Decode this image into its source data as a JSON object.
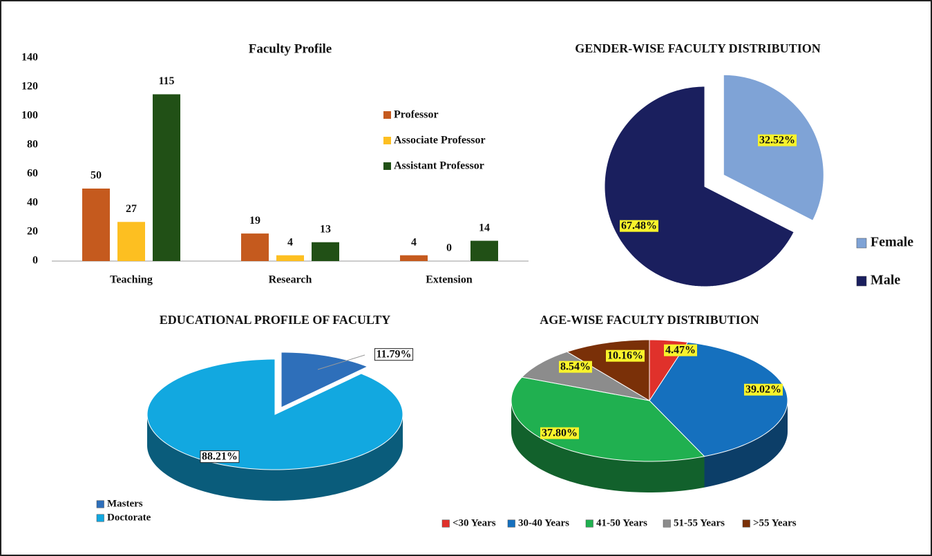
{
  "chart_data": [
    {
      "type": "bar",
      "title": "Faculty Profile",
      "categories": [
        "Teaching",
        "Research",
        "Extension"
      ],
      "series": [
        {
          "name": "Professor",
          "color": "#c55a1e",
          "values": [
            50,
            19,
            4
          ]
        },
        {
          "name": "Associate Professor",
          "color": "#fdbf21",
          "values": [
            27,
            4,
            0
          ]
        },
        {
          "name": "Assistant Professor",
          "color": "#215016",
          "values": [
            115,
            13,
            14
          ]
        }
      ],
      "ylim": [
        0,
        140
      ],
      "yticks": [
        0,
        20,
        40,
        60,
        80,
        100,
        120,
        140
      ],
      "grid": false
    },
    {
      "type": "pie",
      "title": "GENDER-WISE FACULTY DISTRIBUTION",
      "categories": [
        "Female",
        "Male"
      ],
      "values": [
        32.52,
        67.48
      ],
      "value_labels": [
        "32.52%",
        "67.48%"
      ],
      "colors": [
        "#7fa3d6",
        "#1a1f5e"
      ]
    },
    {
      "type": "pie3d",
      "title": "EDUCATIONAL PROFILE OF FACULTY",
      "categories": [
        "Masters",
        "Doctorate"
      ],
      "values": [
        11.79,
        88.21
      ],
      "value_labels": [
        "11.79%",
        "88.21%"
      ],
      "colors": [
        "#2e6fba",
        "#12a8e0"
      ]
    },
    {
      "type": "pie3d",
      "title": "AGE-WISE FACULTY DISTRIBUTION",
      "categories": [
        "<30 Years",
        "30-40 Years",
        "41-50 Years",
        "51-55 Years",
        ">55 Years"
      ],
      "values": [
        4.47,
        39.02,
        37.8,
        8.54,
        10.16
      ],
      "value_labels": [
        "4.47%",
        "39.02%",
        "37.80%",
        "8.54%",
        "10.16%"
      ],
      "colors": [
        "#e0312b",
        "#1570be",
        "#20b050",
        "#8c8c8c",
        "#7a3008"
      ]
    }
  ]
}
